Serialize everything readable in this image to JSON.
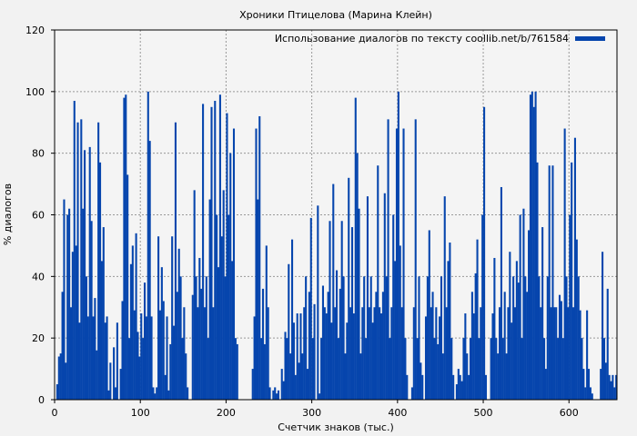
{
  "chart_data": {
    "type": "bar",
    "title": "Хроники Птицелова (Марина Клейн)",
    "xlabel": "Счетчик знаков (тыс.)",
    "ylabel": "% диалогов",
    "legend": {
      "label": "Использование диалогов по тексту coollib.net/b/761584",
      "placement": "top-right"
    },
    "xlim": [
      0,
      656
    ],
    "ylim": [
      0,
      120
    ],
    "xticks": [
      0,
      100,
      200,
      300,
      400,
      500,
      600
    ],
    "yticks": [
      0,
      20,
      40,
      60,
      80,
      100,
      120
    ],
    "grid": true,
    "bar_color": "#0645ad",
    "x_start": 0,
    "x_step": 2,
    "values": [
      0,
      5,
      14,
      15,
      35,
      65,
      12,
      60,
      62,
      30,
      48,
      97,
      50,
      90,
      25,
      91,
      62,
      81,
      40,
      27,
      82,
      58,
      27,
      33,
      16,
      90,
      77,
      45,
      56,
      25,
      27,
      3,
      12,
      0,
      17,
      4,
      25,
      0,
      10,
      32,
      98,
      99,
      73,
      20,
      44,
      50,
      29,
      54,
      22,
      14,
      28,
      20,
      38,
      27,
      100,
      84,
      27,
      4,
      2,
      4,
      53,
      29,
      43,
      32,
      8,
      27,
      3,
      18,
      53,
      24,
      90,
      35,
      49,
      40,
      20,
      30,
      15,
      4,
      0,
      0,
      34,
      68,
      40,
      30,
      46,
      36,
      96,
      30,
      40,
      20,
      65,
      95,
      30,
      97,
      60,
      43,
      99,
      53,
      68,
      40,
      93,
      60,
      80,
      45,
      88,
      20,
      18,
      0,
      0,
      0,
      0,
      0,
      0,
      0,
      0,
      10,
      27,
      88,
      65,
      92,
      20,
      36,
      18,
      50,
      30,
      4,
      0,
      3,
      4,
      2,
      3,
      0,
      10,
      6,
      22,
      20,
      44,
      15,
      52,
      25,
      8,
      28,
      12,
      28,
      15,
      30,
      40,
      10,
      35,
      59,
      20,
      31,
      0,
      63,
      2,
      20,
      37,
      30,
      28,
      35,
      58,
      25,
      70,
      30,
      42,
      20,
      36,
      58,
      40,
      15,
      25,
      72,
      30,
      56,
      28,
      98,
      80,
      62,
      15,
      30,
      40,
      20,
      66,
      30,
      40,
      25,
      30,
      35,
      76,
      30,
      28,
      35,
      67,
      40,
      91,
      20,
      30,
      60,
      45,
      88,
      100,
      50,
      30,
      88,
      20,
      8,
      0,
      0,
      4,
      30,
      91,
      20,
      40,
      12,
      8,
      0,
      27,
      40,
      55,
      30,
      35,
      20,
      30,
      18,
      27,
      40,
      15,
      66,
      30,
      45,
      51,
      20,
      8,
      0,
      5,
      10,
      8,
      6,
      20,
      28,
      15,
      8,
      20,
      35,
      28,
      41,
      52,
      20,
      30,
      60,
      95,
      8,
      0,
      0,
      20,
      28,
      46,
      20,
      15,
      30,
      69,
      20,
      35,
      15,
      30,
      48,
      25,
      40,
      30,
      45,
      38,
      60,
      20,
      62,
      40,
      35,
      55,
      99,
      100,
      95,
      100,
      77,
      40,
      30,
      56,
      20,
      10,
      40,
      76,
      30,
      76,
      30,
      30,
      20,
      34,
      32,
      20,
      88,
      40,
      30,
      60,
      77,
      30,
      85,
      52,
      40,
      29,
      20,
      10,
      4,
      29,
      10,
      4,
      2,
      0,
      0,
      0,
      0,
      10,
      48,
      20,
      12,
      36,
      8,
      6,
      8,
      4,
      8
    ]
  }
}
